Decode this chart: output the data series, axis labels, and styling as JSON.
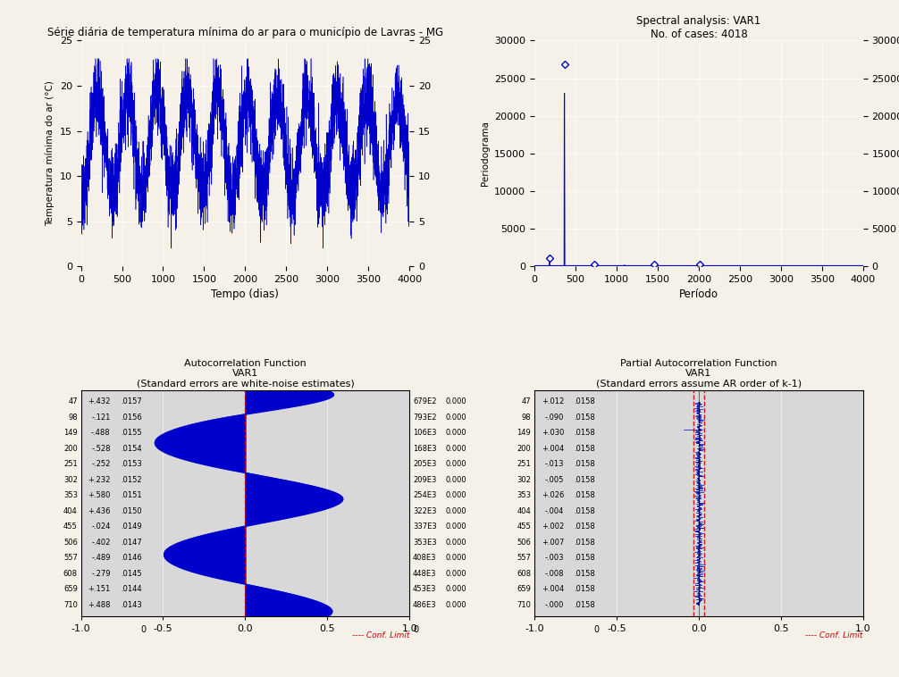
{
  "bg_color": "#f5f0e8",
  "plot_bg_color": "#d8d8d8",
  "line_color": "#0000cc",
  "acf_fill_color": "#0000cc",
  "top_left": {
    "title": "Série diária de temperatura mínima do ar para o município de Lavras - MG",
    "xlabel": "Tempo (dias)",
    "ylabel": "Temperatura mínima do ar (°C)",
    "xlim": [
      0,
      4000
    ],
    "ylim": [
      0,
      25
    ],
    "yticks": [
      0,
      5,
      10,
      15,
      20,
      25
    ],
    "xticks": [
      0,
      500,
      1000,
      1500,
      2000,
      2500,
      3000,
      3500,
      4000
    ],
    "n_points": 4018
  },
  "top_right": {
    "title1": "Spectral analysis: VAR1",
    "title2": "No. of cases: 4018",
    "xlabel": "Período",
    "ylabel": "Periodograma",
    "xlim": [
      0,
      4000
    ],
    "ylim": [
      0,
      30000
    ],
    "yticks": [
      0,
      5000,
      10000,
      15000,
      20000,
      25000,
      30000
    ],
    "xticks": [
      0,
      500,
      1000,
      1500,
      2000,
      2500,
      3000,
      3500,
      4000
    ]
  },
  "acf": {
    "title1": "Autocorrelation Function",
    "title2": "VAR1",
    "title3": "(Standard errors are white-noise estimates)",
    "xlim": [
      -1.0,
      1.0
    ],
    "xticks": [
      -1.0,
      -0.5,
      0.0,
      0.5,
      1.0
    ],
    "conf_limit": 0.031,
    "conf_label": "---- Conf. Limit",
    "left_labels": [
      [
        47,
        "+.432",
        ".0157"
      ],
      [
        98,
        "-.121",
        ".0156"
      ],
      [
        149,
        "-.488",
        ".0155"
      ],
      [
        200,
        "-.528",
        ".0154"
      ],
      [
        251,
        "-.252",
        ".0153"
      ],
      [
        302,
        "+.232",
        ".0152"
      ],
      [
        353,
        "+.580",
        ".0151"
      ],
      [
        404,
        "+.436",
        ".0150"
      ],
      [
        455,
        "-.024",
        ".0149"
      ],
      [
        506,
        "-.402",
        ".0147"
      ],
      [
        557,
        "-.489",
        ".0146"
      ],
      [
        608,
        "-.279",
        ".0145"
      ],
      [
        659,
        "+.151",
        ".0144"
      ],
      [
        710,
        "+.488",
        ".0143"
      ]
    ],
    "right_labels": [
      [
        "679E2",
        "0.000"
      ],
      [
        "793E2",
        "0.000"
      ],
      [
        "106E3",
        "0.000"
      ],
      [
        "168E3",
        "0.000"
      ],
      [
        "205E3",
        "0.000"
      ],
      [
        "209E3",
        "0.000"
      ],
      [
        "254E3",
        "0.000"
      ],
      [
        "322E3",
        "0.000"
      ],
      [
        "337E3",
        "0.000"
      ],
      [
        "353E3",
        "0.000"
      ],
      [
        "408E3",
        "0.000"
      ],
      [
        "448E3",
        "0.000"
      ],
      [
        "453E3",
        "0.000"
      ],
      [
        "486E3",
        "0.000"
      ]
    ],
    "acf_values": [
      0.432,
      -0.121,
      -0.488,
      -0.528,
      -0.252,
      0.232,
      0.58,
      0.436,
      -0.024,
      -0.402,
      -0.489,
      -0.279,
      0.151,
      0.488
    ],
    "lag_values": [
      47,
      98,
      149,
      200,
      251,
      302,
      353,
      404,
      455,
      506,
      557,
      608,
      659,
      710
    ]
  },
  "pacf": {
    "title1": "Partial Autocorrelation Function",
    "title2": "VAR1",
    "title3": "(Standard errors assume AR order of k-1)",
    "xlim": [
      -1.0,
      1.0
    ],
    "xticks": [
      -1.0,
      -0.5,
      0.0,
      0.5,
      1.0
    ],
    "conf_limit": 0.031,
    "conf_label": "---- Conf. Limit",
    "left_labels": [
      [
        47,
        "+.012",
        ".0158"
      ],
      [
        98,
        "-.090",
        ".0158"
      ],
      [
        149,
        "+.030",
        ".0158"
      ],
      [
        200,
        "+.004",
        ".0158"
      ],
      [
        251,
        "-.013",
        ".0158"
      ],
      [
        302,
        "-.005",
        ".0158"
      ],
      [
        353,
        "+.026",
        ".0158"
      ],
      [
        404,
        "-.004",
        ".0158"
      ],
      [
        455,
        "+.002",
        ".0158"
      ],
      [
        506,
        "+.007",
        ".0158"
      ],
      [
        557,
        "-.003",
        ".0158"
      ],
      [
        608,
        "-.008",
        ".0158"
      ],
      [
        659,
        "+.004",
        ".0158"
      ],
      [
        710,
        "-.000",
        ".0158"
      ]
    ],
    "pacf_values": [
      0.012,
      -0.09,
      0.03,
      0.004,
      -0.013,
      -0.005,
      0.026,
      -0.004,
      0.002,
      0.007,
      -0.003,
      -0.008,
      0.004,
      0.0
    ]
  }
}
